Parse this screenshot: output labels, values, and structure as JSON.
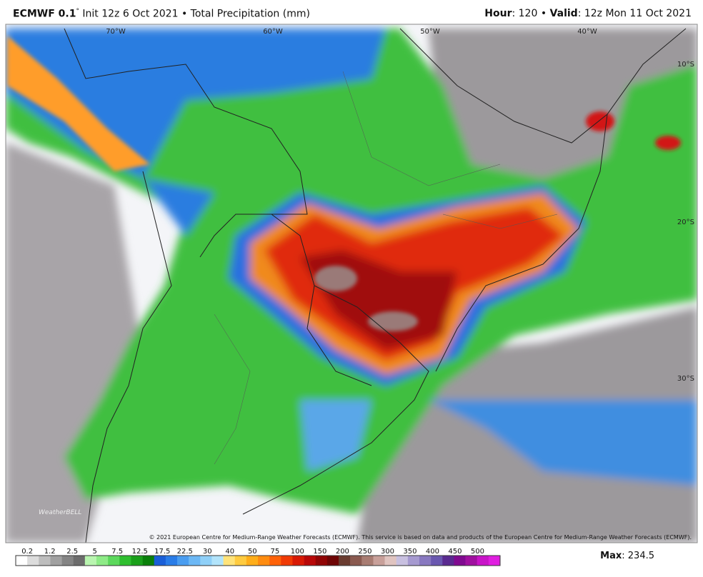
{
  "header": {
    "title": "ECMWF 0.1",
    "degree": "°",
    "subtitle": "Init 12z 6 Oct 2021 • Total Precipitation (mm)",
    "hour_label": "Hour",
    "hour_text": ": 120 •",
    "valid_label": "Valid",
    "valid_text": ": 12z Mon 11 Oct 2021"
  },
  "map": {
    "lon_labels": [
      "70°W",
      "60°W",
      "50°W",
      "40°W"
    ],
    "lat_labels": [
      "10°S",
      "20°S",
      "30°S"
    ],
    "logo": "WeatherBELL",
    "copyright": "© 2021 European Centre for Medium-Range Weather Forecasts (ECMWF). This service is based on data and products of the European Centre for Medium-Range Weather Forecasts (ECMWF)."
  },
  "colorbar": {
    "labels": [
      "0.2",
      "1.2",
      "2.5",
      "5",
      "7.5",
      "12.5",
      "17.5",
      "22.5",
      "30",
      "40",
      "50",
      "75",
      "100",
      "150",
      "200",
      "250",
      "300",
      "350",
      "400",
      "450",
      "500"
    ]
  },
  "footer": {
    "max_label": "Max",
    "max_text": ": 234.5"
  }
}
